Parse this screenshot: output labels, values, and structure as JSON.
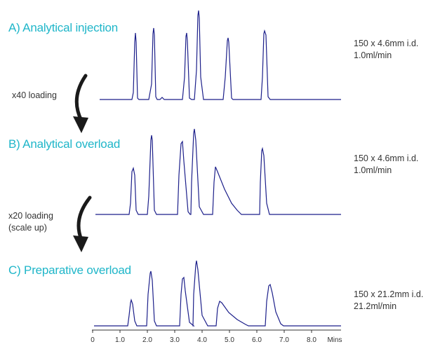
{
  "panels": [
    {
      "title": "A) Analytical injection",
      "column_line1": "150 x 4.6mm i.d.",
      "column_line2": "1.0ml/min"
    },
    {
      "title": "B) Analytical overload",
      "column_line1": "150 x 4.6mm i.d.",
      "column_line2": "1.0ml/min"
    },
    {
      "title": "C) Preparative overload",
      "column_line1": "150 x 21.2mm i.d.",
      "column_line2": "21.2ml/min"
    }
  ],
  "arrows": [
    {
      "line1": "x40 loading",
      "line2": ""
    },
    {
      "line1": "x20 loading",
      "line2": "(scale up)"
    }
  ],
  "axis": {
    "ticks": [
      "0",
      "1.0",
      "2.0",
      "3.0",
      "4.0",
      "5.0",
      "6.0",
      "7.0",
      "8.0"
    ],
    "unit": "Mins"
  },
  "colors": {
    "trace": "#1c1f8a",
    "title": "#1fb6c9",
    "arrow": "#1a1a1a"
  }
}
